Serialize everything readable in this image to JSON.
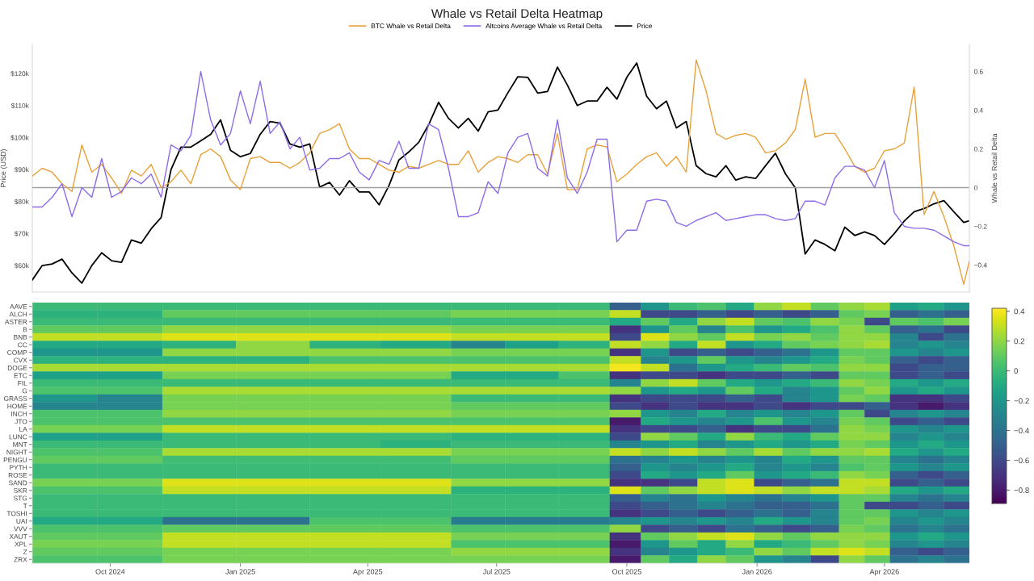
{
  "chart_data": [
    {
      "type": "line",
      "title": "Whale vs Retail Delta Heatmap",
      "ylabel": "Price (USD)",
      "y2label": "Whale vs Retail Delta",
      "legend": "top",
      "tick_labels": "y",
      "x": [
        "2024-08-07",
        "2024-08-14",
        "2024-08-21",
        "2024-08-28",
        "2024-09-04",
        "2024-09-11",
        "2024-09-18",
        "2024-09-25",
        "2024-10-02",
        "2024-10-09",
        "2024-10-16",
        "2024-10-23",
        "2024-10-30",
        "2024-11-06",
        "2024-11-13",
        "2024-11-20",
        "2024-11-27",
        "2024-12-04",
        "2024-12-11",
        "2024-12-18",
        "2024-12-25",
        "2025-01-01",
        "2025-01-08",
        "2025-01-15",
        "2025-01-22",
        "2025-01-29",
        "2025-02-05",
        "2025-02-12",
        "2025-02-19",
        "2025-02-26",
        "2025-03-05",
        "2025-03-12",
        "2025-03-19",
        "2025-03-26",
        "2025-04-02",
        "2025-04-09",
        "2025-04-16",
        "2025-04-23",
        "2025-04-30",
        "2025-05-07",
        "2025-05-14",
        "2025-05-21",
        "2025-05-28",
        "2025-06-04",
        "2025-06-11",
        "2025-06-18",
        "2025-06-25",
        "2025-07-02",
        "2025-07-09",
        "2025-07-16",
        "2025-07-23",
        "2025-07-30",
        "2025-08-06",
        "2025-08-13",
        "2025-08-20",
        "2025-08-27",
        "2025-09-03",
        "2025-09-10",
        "2025-09-17",
        "2025-09-24",
        "2025-10-01",
        "2025-10-08",
        "2025-10-15",
        "2025-10-22",
        "2025-10-29",
        "2025-11-05",
        "2025-11-12",
        "2025-11-19",
        "2025-11-26",
        "2025-12-03",
        "2025-12-10",
        "2025-12-17",
        "2025-12-24",
        "2025-12-31",
        "2026-01-07",
        "2026-01-14",
        "2026-01-21",
        "2026-01-28",
        "2026-02-04",
        "2026-02-11",
        "2026-02-18",
        "2026-02-25",
        "2026-03-04",
        "2026-03-11",
        "2026-03-18",
        "2026-03-25",
        "2026-04-01",
        "2026-04-08",
        "2026-04-15",
        "2026-04-22",
        "2026-04-29",
        "2026-05-06",
        "2026-05-13",
        "2026-05-20",
        "2026-05-27",
        "2026-05-31"
      ],
      "series": [
        {
          "name": "BTC Whale vs Retail Delta",
          "color": "#e8a13a",
          "axis": "y2",
          "values": [
            0.06,
            0.1,
            0.08,
            0.02,
            -0.02,
            0.22,
            0.08,
            0.12,
            0.05,
            -0.03,
            0.09,
            0.06,
            0.12,
            0.0,
            0.03,
            0.09,
            0.02,
            0.17,
            0.2,
            0.16,
            0.04,
            -0.01,
            0.15,
            0.16,
            0.13,
            0.13,
            0.1,
            0.13,
            0.18,
            0.28,
            0.3,
            0.33,
            0.2,
            0.15,
            0.15,
            0.12,
            0.09,
            0.08,
            0.11,
            0.1,
            0.12,
            0.14,
            0.12,
            0.12,
            0.19,
            0.08,
            0.13,
            0.16,
            0.15,
            0.13,
            0.17,
            0.17,
            0.07,
            0.28,
            -0.01,
            -0.01,
            0.2,
            0.22,
            0.21,
            0.03,
            0.07,
            0.12,
            0.16,
            0.18,
            0.11,
            0.16,
            0.08,
            0.66,
            0.5,
            0.28,
            0.25,
            0.27,
            0.28,
            0.26,
            0.18,
            0.19,
            0.23,
            0.3,
            0.56,
            0.26,
            0.28,
            0.28,
            0.2,
            0.11,
            0.08,
            0.1,
            0.19,
            0.2,
            0.23,
            0.52,
            -0.14,
            -0.02,
            -0.15,
            -0.3,
            -0.5,
            -0.38
          ]
        },
        {
          "name": "Altcoins Average Whale vs Retail Delta",
          "color": "#8e6be8",
          "axis": "y2",
          "values": [
            -0.1,
            -0.1,
            -0.05,
            0.02,
            -0.15,
            0.0,
            -0.05,
            0.15,
            -0.05,
            -0.02,
            0.05,
            0.02,
            0.07,
            -0.05,
            0.22,
            0.19,
            0.27,
            0.6,
            0.35,
            0.22,
            0.28,
            0.5,
            0.33,
            0.55,
            0.28,
            0.34,
            0.2,
            0.26,
            0.09,
            0.1,
            0.15,
            0.15,
            0.18,
            0.08,
            0.04,
            0.14,
            0.12,
            0.24,
            0.1,
            0.1,
            0.33,
            0.3,
            0.1,
            -0.15,
            -0.15,
            -0.13,
            0.03,
            -0.03,
            0.18,
            0.26,
            0.28,
            0.1,
            0.06,
            0.35,
            0.05,
            -0.03,
            0.08,
            0.25,
            0.25,
            -0.28,
            -0.22,
            -0.22,
            -0.07,
            -0.06,
            -0.07,
            -0.18,
            -0.2,
            -0.17,
            -0.15,
            -0.13,
            -0.17,
            -0.16,
            -0.15,
            -0.14,
            -0.14,
            -0.16,
            -0.17,
            -0.16,
            -0.07,
            -0.07,
            -0.09,
            0.05,
            0.11,
            0.11,
            0.09,
            0.0,
            0.14,
            -0.13,
            -0.2,
            -0.21,
            -0.21,
            -0.22,
            -0.25,
            -0.28,
            -0.3,
            -0.3
          ]
        },
        {
          "name": "Price",
          "color": "#000000",
          "values": [
            55500,
            60000,
            60500,
            62000,
            57700,
            54500,
            60000,
            64000,
            61500,
            61000,
            68000,
            67000,
            71500,
            75000,
            90000,
            97000,
            97000,
            99000,
            101000,
            105500,
            96000,
            94000,
            95000,
            101000,
            105000,
            104500,
            98000,
            97000,
            98000,
            84500,
            86000,
            82000,
            86500,
            83000,
            83000,
            79000,
            85000,
            93000,
            95500,
            98500,
            104000,
            111000,
            106000,
            103000,
            106000,
            102000,
            108000,
            108600,
            114000,
            119000,
            118800,
            113900,
            114400,
            122000,
            116400,
            110000,
            111400,
            111400,
            115700,
            112000,
            118800,
            123300,
            112900,
            109000,
            111400,
            103000,
            105000,
            91200,
            88700,
            87700,
            91200,
            86700,
            87700,
            87200,
            91200,
            95100,
            88700,
            84300,
            63600,
            68000,
            66600,
            64600,
            72000,
            69400,
            70500,
            69400,
            66600,
            70000,
            73900,
            76800,
            77800,
            79300,
            80300,
            76800,
            73500,
            74000
          ]
        }
      ],
      "xlim": [
        "2024-08-07",
        "2026-05-31"
      ],
      "ylim": [
        51700,
        129100
      ],
      "yticks": [
        {
          "value": 60000,
          "label": "$60k"
        },
        {
          "value": 70000,
          "label": "$70k"
        },
        {
          "value": 80000,
          "label": "$80k"
        },
        {
          "value": 90000,
          "label": "$90k"
        },
        {
          "value": 100000,
          "label": "$100k"
        },
        {
          "value": 110000,
          "label": "$110k"
        },
        {
          "value": 120000,
          "label": "$120k"
        }
      ],
      "y2lim": [
        -0.54,
        0.74
      ],
      "y2ticks": [
        {
          "value": -0.4,
          "label": "−0.4"
        },
        {
          "value": -0.2,
          "label": "−0.2"
        },
        0,
        0.2,
        0.4,
        0.6
      ],
      "ref_lines": [
        {
          "axis": "y2",
          "value": 0,
          "color": "#a0a0a0"
        }
      ]
    },
    {
      "type": "heatmap",
      "x": [
        "2024-08-30",
        "2024-10-15",
        "2024-12-03",
        "2025-01-24",
        "2025-03-16",
        "2025-05-05",
        "2025-06-18",
        "2025-07-26",
        "2025-09-01",
        "2025-09-30",
        "2025-10-21",
        "2025-11-10",
        "2025-11-30",
        "2025-12-20",
        "2026-01-09",
        "2026-01-29",
        "2026-02-18",
        "2026-03-09",
        "2026-03-27",
        "2026-04-15",
        "2026-05-04",
        "2026-05-22"
      ],
      "xlim": [
        "2024-08-07",
        "2026-05-31"
      ],
      "xticks": [
        {
          "value": "2024-10-01",
          "label": "Oct 2024"
        },
        {
          "value": "2025-01-01",
          "label": "Jan 2025"
        },
        {
          "value": "2025-04-01",
          "label": "Apr 2025"
        },
        {
          "value": "2025-07-01",
          "label": "Jul 2025"
        },
        {
          "value": "2025-10-01",
          "label": "Oct 2025"
        },
        {
          "value": "2026-01-01",
          "label": "Jan 2026"
        },
        {
          "value": "2026-04-01",
          "label": "Apr 2026"
        }
      ],
      "y_categories": [
        "AAVE",
        "ALCH",
        "ASTER",
        "B",
        "BNB",
        "CC",
        "COMP",
        "CVX",
        "DOGE",
        "ETC",
        "FIL",
        "G",
        "GRASS",
        "HOME",
        "INCH",
        "JTO",
        "LA",
        "LUNC",
        "MNT",
        "NIGHT",
        "PENGU",
        "PYTH",
        "ROSE",
        "SAND",
        "SKR",
        "STG",
        "T",
        "TOSHI",
        "UAI",
        "VVV",
        "XAUT",
        "XPL",
        "Z",
        "ZRX"
      ],
      "cells": [
        [
          0,
          0,
          0,
          0,
          0,
          0,
          0,
          0,
          0,
          -0.5,
          -0.2,
          0,
          0.05,
          -0.1,
          0.2,
          0.3,
          0.1,
          0.2,
          0.25,
          -0.15,
          -0.1,
          -0.2
        ],
        [
          -0.05,
          -0.05,
          0.1,
          0.1,
          0.1,
          0.1,
          0.15,
          0.15,
          0.15,
          0.3,
          -0.6,
          -0.6,
          -0.5,
          -0.6,
          -0.5,
          -0.6,
          -0.5,
          0.1,
          0.15,
          -0.5,
          -0.4,
          -0.5
        ],
        [
          0,
          0,
          0,
          0,
          0,
          0,
          0,
          0,
          0,
          -0.1,
          0.1,
          -0.1,
          0.2,
          0.3,
          0.1,
          0.05,
          0.2,
          0.15,
          -0.6,
          0.1,
          0.05,
          0.15
        ],
        [
          0.1,
          0.1,
          0.2,
          0.2,
          0.2,
          0.2,
          0.15,
          0.15,
          0.15,
          -0.7,
          -0.2,
          0.1,
          -0.3,
          0.05,
          -0.2,
          -0.1,
          0.05,
          0.2,
          0.1,
          -0.5,
          -0.4,
          -0.6
        ],
        [
          0.3,
          0.3,
          0.35,
          0.35,
          0.35,
          0.35,
          0.3,
          0.3,
          0.3,
          -0.6,
          0.35,
          0.2,
          0.1,
          0.3,
          0.15,
          0.2,
          0.1,
          0.2,
          0.2,
          -0.3,
          -0.6,
          -0.4
        ],
        [
          -0.1,
          -0.1,
          -0.05,
          0.2,
          -0.05,
          -0.1,
          -0.3,
          -0.15,
          -0.05,
          0.3,
          0.2,
          -0.1,
          0.3,
          -0.2,
          -0.1,
          0.1,
          0.15,
          0.2,
          0.25,
          -0.3,
          -0.2,
          -0.3
        ],
        [
          -0.2,
          -0.2,
          0.2,
          0.2,
          0.2,
          0.2,
          0.15,
          0.15,
          0.15,
          -0.7,
          -0.2,
          -0.6,
          -0.5,
          -0.6,
          -0.5,
          -0.4,
          -0.2,
          0.1,
          0.1,
          -0.2,
          -0.3,
          -0.2
        ],
        [
          -0.05,
          -0.05,
          -0.05,
          -0.05,
          0.05,
          0.05,
          0.05,
          0.05,
          0.05,
          0.3,
          -0.3,
          -0.2,
          0.1,
          -0.2,
          -0.3,
          -0.2,
          -0.1,
          0.15,
          0.1,
          -0.5,
          -0.6,
          -0.5
        ],
        [
          0.25,
          0.25,
          0.25,
          0.25,
          0.25,
          0.25,
          0.25,
          0.25,
          0.25,
          0.4,
          0.3,
          -0.4,
          -0.2,
          -0.1,
          0,
          0.1,
          0.05,
          0.2,
          0.2,
          -0.6,
          -0.5,
          -0.5
        ],
        [
          -0.15,
          -0.15,
          0.15,
          0.15,
          0.15,
          0.15,
          -0.1,
          -0.1,
          0.05,
          -0.7,
          -0.6,
          -0.6,
          -0.7,
          -0.6,
          -0.6,
          -0.5,
          -0.6,
          0.1,
          0.1,
          -0.6,
          -0.5,
          -0.6
        ],
        [
          0,
          0,
          0,
          0,
          0,
          0,
          0,
          0,
          0,
          -0.3,
          0.2,
          0.3,
          0.1,
          -0.1,
          -0.2,
          -0.1,
          0,
          0.2,
          0.15,
          -0.1,
          -0.2,
          -0.1
        ],
        [
          0.05,
          0.05,
          0.25,
          0.25,
          0.25,
          0.25,
          0.25,
          0.25,
          0.25,
          0.2,
          -0.2,
          -0.1,
          -0.2,
          0.1,
          -0.1,
          -0.3,
          -0.2,
          0.1,
          0.2,
          -0.2,
          -0.1,
          -0.2
        ],
        [
          -0.2,
          -0.3,
          0.15,
          0.15,
          0.15,
          0.15,
          0,
          0,
          0,
          -0.7,
          -0.6,
          -0.6,
          -0.6,
          -0.5,
          -0.6,
          -0.3,
          -0.2,
          0.15,
          0.1,
          -0.7,
          -0.7,
          -0.6
        ],
        [
          -0.3,
          -0.3,
          0.15,
          0.15,
          0.15,
          0.15,
          0.1,
          0.1,
          0.1,
          -0.6,
          -0.7,
          -0.6,
          -0.7,
          -0.7,
          -0.6,
          -0.7,
          -0.6,
          -0.6,
          -0.5,
          -0.7,
          -0.8,
          -0.7
        ],
        [
          0.05,
          0.05,
          0.2,
          0.2,
          0.2,
          0.2,
          0.15,
          0.15,
          0.15,
          0.2,
          -0.2,
          -0.3,
          -0.1,
          -0.3,
          -0.2,
          -0.3,
          -0.2,
          0.1,
          -0.6,
          -0.3,
          -0.2,
          -0.3
        ],
        [
          0.05,
          0.05,
          0.05,
          0.05,
          0.05,
          0.05,
          0.05,
          0.05,
          0.05,
          -0.8,
          -0.1,
          -0.2,
          -0.3,
          -0.2,
          0.05,
          -0.2,
          -0.3,
          0.15,
          0.1,
          -0.6,
          -0.5,
          -0.6
        ],
        [
          0.15,
          0.15,
          0.3,
          0.3,
          0.3,
          0.3,
          0.3,
          0.3,
          0.3,
          -0.7,
          -0.6,
          -0.6,
          -0.5,
          -0.7,
          -0.6,
          -0.6,
          -0.4,
          0.2,
          0.15,
          -0.2,
          -0.3,
          -0.2
        ],
        [
          -0.15,
          -0.15,
          0,
          0,
          0,
          0,
          -0.05,
          -0.05,
          -0.05,
          -0.6,
          0.2,
          0.1,
          -0.1,
          0.2,
          0,
          -0.1,
          0.1,
          0.2,
          0.2,
          -0.3,
          -0.2,
          -0.3
        ],
        [
          0,
          0,
          0,
          0,
          0,
          -0.05,
          0,
          0,
          0,
          -0.3,
          -0.2,
          -0.1,
          -0.3,
          -0.2,
          -0.1,
          -0.2,
          -0.1,
          0.15,
          0.1,
          -0.2,
          -0.1,
          -0.2
        ],
        [
          0.05,
          0.05,
          0.25,
          0.25,
          0.25,
          0.25,
          0.15,
          0.15,
          0.15,
          0.3,
          0.2,
          0.3,
          0.2,
          0.1,
          0.25,
          0.1,
          0.2,
          0.2,
          0.25,
          -0.1,
          -0.2,
          -0.1
        ],
        [
          0.1,
          0.1,
          0.02,
          0.02,
          0.02,
          0.02,
          0.1,
          0.1,
          0.1,
          -0.4,
          -0.3,
          -0.2,
          -0.3,
          -0.2,
          -0.3,
          -0.1,
          -0.2,
          0.1,
          0.1,
          -0.3,
          -0.4,
          -0.3
        ],
        [
          0,
          0,
          0,
          0,
          0,
          0,
          0,
          0,
          0,
          -0.5,
          -0.2,
          -0.3,
          -0.2,
          -0.1,
          -0.3,
          -0.2,
          -0.3,
          0.05,
          0.1,
          -0.2,
          -0.3,
          -0.2
        ],
        [
          0,
          0,
          0,
          0,
          0,
          0,
          0,
          0,
          0,
          -0.6,
          -0.1,
          -0.2,
          -0.1,
          0.1,
          -0.2,
          -0.1,
          0,
          0.2,
          0.15,
          -0.5,
          -0.6,
          -0.5
        ],
        [
          0.15,
          0.15,
          0.35,
          0.35,
          0.35,
          0.35,
          0.2,
          0.2,
          0.2,
          -0.7,
          -0.7,
          -0.6,
          0.3,
          0.35,
          -0.6,
          -0.5,
          -0.4,
          0.3,
          0.3,
          -0.6,
          -0.5,
          -0.6
        ],
        [
          0.05,
          0.05,
          0.3,
          0.3,
          0.3,
          0.3,
          -0.05,
          -0.05,
          -0.05,
          0.35,
          0.1,
          0.2,
          0.3,
          0.35,
          0.3,
          0.2,
          0.3,
          0.3,
          0.25,
          -0.1,
          -0.2,
          -0.1
        ],
        [
          0,
          0,
          0,
          0,
          0,
          0,
          0,
          0,
          0,
          -0.5,
          -0.3,
          -0.4,
          -0.2,
          -0.3,
          -0.4,
          -0.3,
          -0.2,
          0.1,
          0.1,
          -0.3,
          -0.4,
          -0.3
        ],
        [
          0,
          0,
          0,
          0,
          0,
          0,
          0,
          0,
          0,
          -0.6,
          -0.5,
          -0.4,
          -0.3,
          -0.4,
          -0.5,
          -0.5,
          -0.4,
          0.1,
          -0.6,
          -0.6,
          -0.5,
          -0.6
        ],
        [
          0,
          0,
          0,
          0,
          0,
          0,
          0,
          0,
          0,
          -0.7,
          -0.6,
          -0.5,
          -0.6,
          -0.5,
          -0.4,
          -0.5,
          -0.3,
          0.1,
          0.1,
          -0.2,
          -0.3,
          -0.2
        ],
        [
          -0.1,
          -0.1,
          -0.4,
          -0.4,
          0.05,
          0.05,
          -0.35,
          -0.35,
          -0.35,
          -0.3,
          -0.2,
          -0.3,
          -0.2,
          -0.3,
          -0.1,
          -0.2,
          -0.3,
          0.1,
          0.15,
          -0.3,
          -0.2,
          -0.3
        ],
        [
          0.05,
          0.05,
          0.1,
          0.1,
          0.1,
          0.1,
          0.05,
          0.05,
          0.05,
          0.2,
          -0.6,
          -0.5,
          -0.6,
          -0.4,
          -0.5,
          -0.6,
          -0.5,
          0.15,
          0.1,
          -0.4,
          -0.3,
          -0.4
        ],
        [
          0.1,
          0.1,
          0.3,
          0.3,
          0.3,
          0.3,
          0.15,
          0.15,
          0.15,
          -0.7,
          0.1,
          0.2,
          0.3,
          0.35,
          0.2,
          0.1,
          0.2,
          0.2,
          0.2,
          -0.2,
          -0.1,
          -0.2
        ],
        [
          0.15,
          0.15,
          0.3,
          0.3,
          0.3,
          0.3,
          0.05,
          0.05,
          0.05,
          -0.8,
          -0.2,
          0.1,
          -0.1,
          0.2,
          -0.1,
          0,
          0.1,
          0.2,
          0.15,
          -0.3,
          -0.2,
          -0.3
        ],
        [
          0.1,
          0.1,
          0.15,
          0.15,
          0.15,
          0.15,
          0.2,
          0.2,
          0.2,
          -0.7,
          -0.3,
          -0.2,
          -0.1,
          0,
          0.2,
          0.1,
          0.3,
          0.35,
          0.3,
          -0.5,
          -0.6,
          -0.5
        ],
        [
          0.05,
          0.05,
          0.15,
          0.15,
          0.15,
          0.15,
          0.15,
          0.15,
          0.15,
          -0.8,
          0.1,
          -0.1,
          0.2,
          0.1,
          -0.2,
          -0.3,
          -0.6,
          0.2,
          0.1,
          -0.4,
          -0.3,
          -0.4
        ]
      ],
      "clim": [
        -0.89,
        0.42
      ],
      "cticks": [
        {
          "value": -0.8,
          "label": "−0.8"
        },
        {
          "value": -0.6,
          "label": "−0.6"
        },
        {
          "value": -0.4,
          "label": "−0.4"
        },
        {
          "value": -0.2,
          "label": "−0.2"
        },
        0,
        0.2,
        0.4
      ]
    }
  ]
}
